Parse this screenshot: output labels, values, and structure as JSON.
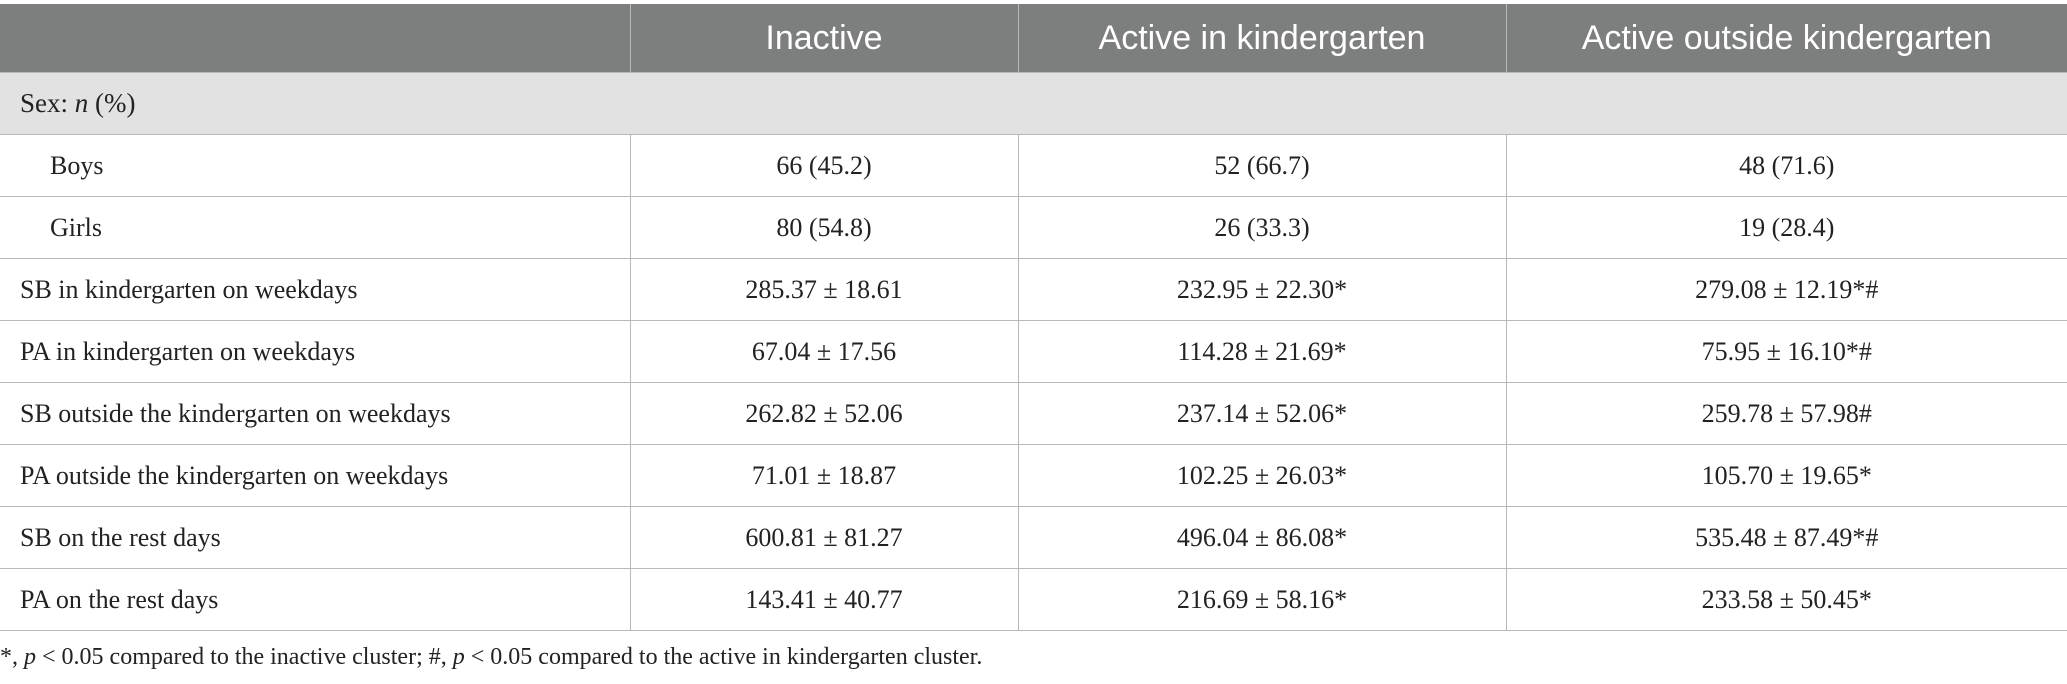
{
  "table": {
    "headers": [
      "",
      "Inactive",
      "Active in kindergarten",
      "Active outside kindergarten"
    ],
    "section": {
      "label_prefix": "Sex: ",
      "label_n": "n",
      "label_suffix": " (%)"
    },
    "rows": [
      {
        "label": "Boys",
        "values": [
          "66 (45.2)",
          "52 (66.7)",
          "48 (71.6)"
        ]
      },
      {
        "label": "Girls",
        "values": [
          "80 (54.8)",
          "26 (33.3)",
          "19 (28.4)"
        ]
      },
      {
        "label": "SB in kindergarten on weekdays",
        "values": [
          "285.37 ± 18.61",
          "232.95 ± 22.30*",
          "279.08 ± 12.19*#"
        ]
      },
      {
        "label": "PA in kindergarten on weekdays",
        "values": [
          "67.04 ± 17.56",
          "114.28 ± 21.69*",
          "75.95 ± 16.10*#"
        ]
      },
      {
        "label": "SB outside the kindergarten on weekdays",
        "values": [
          "262.82 ± 52.06",
          "237.14 ± 52.06*",
          "259.78 ± 57.98#"
        ]
      },
      {
        "label": "PA outside the kindergarten on weekdays",
        "values": [
          "71.01 ± 18.87",
          "102.25 ± 26.03*",
          "105.70 ± 19.65*"
        ]
      },
      {
        "label": "SB on the rest days",
        "values": [
          "600.81 ± 81.27",
          "496.04 ± 86.08*",
          "535.48 ± 87.49*#"
        ]
      },
      {
        "label": "PA on the rest days",
        "values": [
          "143.41 ± 40.77",
          "216.69 ± 58.16*",
          "233.58 ± 50.45*"
        ]
      }
    ]
  },
  "footnote": {
    "part1": "*, ",
    "p1": "p",
    "part2": " < 0.05 compared to the inactive cluster; #, ",
    "p2": "p",
    "part3": " < 0.05 compared to the active in kindergarten cluster."
  }
}
